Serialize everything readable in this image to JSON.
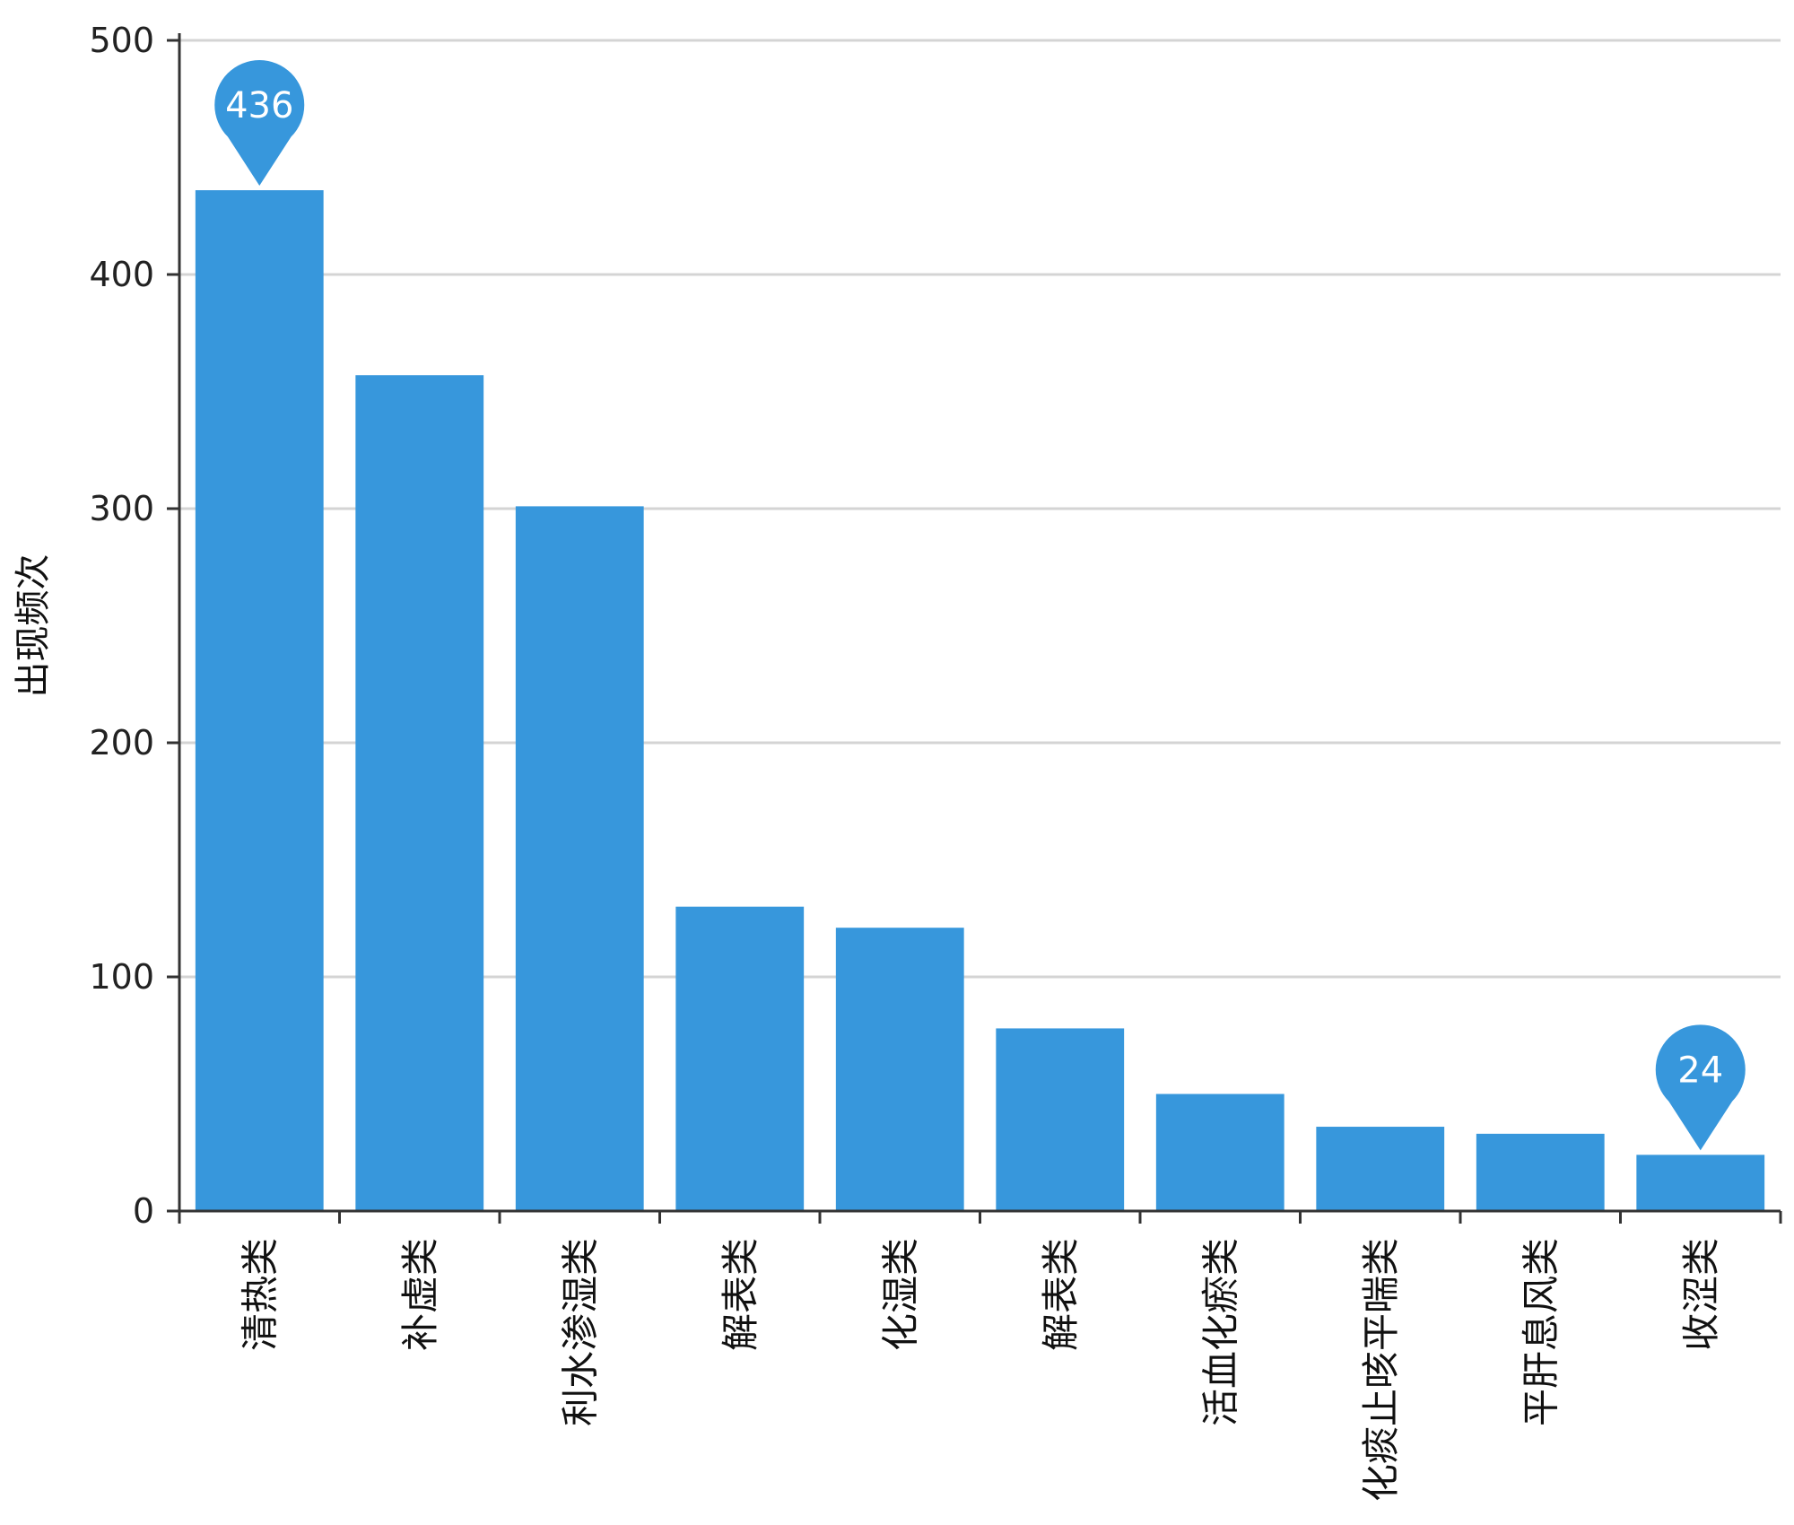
{
  "chart_data": {
    "type": "bar",
    "ylabel": "出现频次",
    "xlabel": "",
    "ylim": [
      0,
      500
    ],
    "yticks": [
      0,
      100,
      200,
      300,
      400,
      500
    ],
    "categories": [
      "清热类",
      "补虚类",
      "利水渗湿类",
      "解表类",
      "化湿类",
      "解表类",
      "活血化瘀类",
      "化痰止咳平喘类",
      "平肝息风类",
      "收涩类"
    ],
    "values": [
      436,
      357,
      301,
      130,
      121,
      78,
      50,
      36,
      33,
      24
    ],
    "markers": [
      {
        "category_index": 0,
        "label": "436"
      },
      {
        "category_index": 9,
        "label": "24"
      }
    ],
    "colors": {
      "bar": "#3797dc",
      "marker": "#3797dc",
      "grid": "#d4d4d4",
      "axis": "#333333"
    },
    "grid": true,
    "legend": "none"
  }
}
